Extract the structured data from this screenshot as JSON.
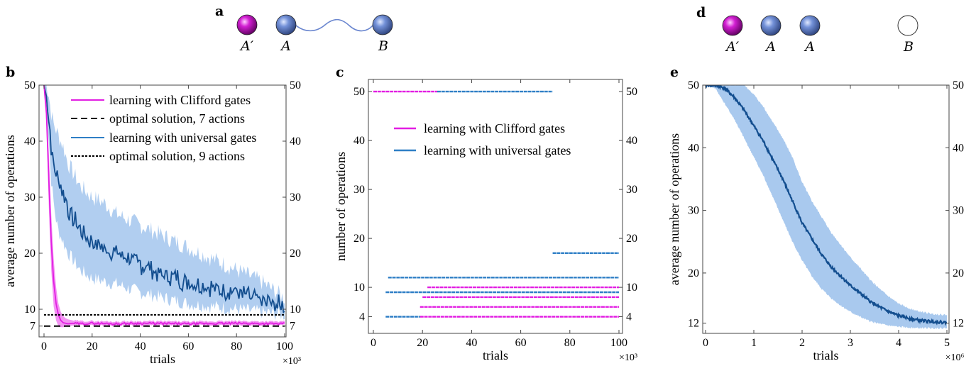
{
  "panel_labels": {
    "a": "a",
    "b": "b",
    "c": "c",
    "d": "d",
    "e": "e"
  },
  "diagram_a": {
    "atoms": [
      {
        "label": "A′",
        "color": "#c020c0"
      },
      {
        "label": "A",
        "color": "#6a86cf"
      },
      {
        "label": "B",
        "color": "#6a86cf"
      }
    ],
    "link": "wavy line between A and B"
  },
  "diagram_d": {
    "atoms": [
      {
        "label": "A′",
        "color": "#c020c0"
      },
      {
        "label": "A",
        "color": "#6a86cf"
      },
      {
        "label": "A",
        "color": "#6a86cf"
      },
      {
        "label": "B",
        "color": "#ffffff"
      }
    ]
  },
  "colors": {
    "clifford": "#e21ee2",
    "clifford_band": "#f287f2",
    "universal_line": "#134e8f",
    "universal_band": "#a9c9ee",
    "universal_dots": "#2f7fc6"
  },
  "chart_data": [
    {
      "id": "b",
      "type": "line",
      "xlabel": "trials",
      "ylabel": "average number of operations",
      "x_multiplier": "×10³",
      "xlim": [
        0,
        100
      ],
      "ylim": [
        5,
        50
      ],
      "xticks": [
        0,
        20,
        40,
        60,
        80,
        100
      ],
      "yticks": [
        7,
        10,
        20,
        30,
        40,
        50
      ],
      "legend": [
        "learning with Clifford gates",
        "optimal solution, 7 actions",
        "learning with universal gates",
        "optimal solution, 9 actions"
      ],
      "series": [
        {
          "name": "learning with Clifford gates",
          "x": [
            0,
            1,
            2,
            3,
            4,
            5,
            6,
            7,
            8,
            9,
            10,
            12,
            15,
            20,
            30,
            40,
            60,
            80,
            100
          ],
          "y": [
            50,
            45,
            33,
            22,
            15,
            11,
            9,
            8,
            7.6,
            7.5,
            7.4,
            7.5,
            7.4,
            7.5,
            7.4,
            7.5,
            7.4,
            7.5,
            7.4
          ],
          "band_lower": [
            50,
            43,
            28,
            17,
            10.5,
            8,
            7,
            6.8,
            6.8,
            6.9,
            7.0,
            7.1,
            7.1,
            7.1,
            7.1,
            7.1,
            7.1,
            7.1,
            7.1
          ],
          "band_upper": [
            50,
            47,
            38,
            27,
            19,
            14,
            11,
            9.5,
            8.8,
            8.4,
            8.2,
            8.0,
            7.9,
            7.9,
            7.8,
            7.9,
            7.8,
            7.9,
            7.8
          ]
        },
        {
          "name": "learning with universal gates",
          "x": [
            0,
            1,
            2,
            3,
            4,
            5,
            6,
            8,
            10,
            15,
            20,
            25,
            30,
            40,
            50,
            60,
            70,
            80,
            90,
            100
          ],
          "y": [
            50,
            48,
            44,
            39,
            36,
            34,
            33,
            31,
            28,
            24,
            22,
            21,
            20,
            18,
            16,
            15,
            14,
            13,
            11.5,
            10.5
          ],
          "band_lower": [
            50,
            46,
            40,
            33,
            29,
            26,
            24,
            22,
            20,
            17,
            15.5,
            15,
            14.5,
            13,
            12,
            11,
            10.5,
            10,
            9.5,
            9
          ],
          "band_upper": [
            50,
            50,
            48,
            45,
            43,
            42,
            41,
            39,
            36,
            32,
            30,
            29,
            27,
            25,
            23,
            21,
            19,
            17,
            15,
            12
          ]
        },
        {
          "name": "optimal solution, 7 actions",
          "x": [
            0,
            100
          ],
          "y": [
            7,
            7
          ]
        },
        {
          "name": "optimal solution, 9 actions",
          "x": [
            0,
            100
          ],
          "y": [
            9,
            9
          ]
        }
      ]
    },
    {
      "id": "c",
      "type": "scatter",
      "xlabel": "trials",
      "ylabel": "number of operations",
      "x_multiplier": "×10³",
      "xlim": [
        0,
        100
      ],
      "ylim": [
        2,
        52
      ],
      "xticks": [
        0,
        20,
        40,
        60,
        80,
        100
      ],
      "yticks": [
        4,
        10,
        20,
        30,
        40,
        50
      ],
      "legend": [
        "learning with Clifford gates",
        "learning with universal gates"
      ],
      "series": [
        {
          "name": "learning with Clifford gates",
          "segments": [
            {
              "y": 50,
              "x_start": 0,
              "x_end": 26
            },
            {
              "y": 10,
              "x_start": 22,
              "x_end": 100
            },
            {
              "y": 8,
              "x_start": 20,
              "x_end": 100
            },
            {
              "y": 6,
              "x_start": 19,
              "x_end": 100
            },
            {
              "y": 4,
              "x_start": 19,
              "x_end": 100
            }
          ]
        },
        {
          "name": "learning with universal gates",
          "segments": [
            {
              "y": 50,
              "x_start": 26,
              "x_end": 73
            },
            {
              "y": 17,
              "x_start": 73,
              "x_end": 100
            },
            {
              "y": 12,
              "x_start": 6,
              "x_end": 100
            },
            {
              "y": 9,
              "x_start": 5,
              "x_end": 100
            },
            {
              "y": 4,
              "x_start": 5,
              "x_end": 19
            }
          ]
        }
      ]
    },
    {
      "id": "e",
      "type": "line",
      "xlabel": "trials",
      "ylabel": "average number of operations",
      "x_multiplier": "×10⁶",
      "xlim": [
        0,
        5
      ],
      "ylim": [
        11,
        50
      ],
      "xticks": [
        0,
        1,
        2,
        3,
        4,
        5
      ],
      "yticks": [
        12,
        20,
        30,
        40,
        50
      ],
      "series": [
        {
          "name": "",
          "x": [
            0,
            0.2,
            0.4,
            0.6,
            0.8,
            1.0,
            1.2,
            1.4,
            1.6,
            1.8,
            2.0,
            2.2,
            2.4,
            2.6,
            2.8,
            3.0,
            3.2,
            3.4,
            3.6,
            3.8,
            4.0,
            4.2,
            4.4,
            4.6,
            4.8,
            5.0
          ],
          "y": [
            50,
            50,
            49.5,
            48,
            46,
            43.5,
            41,
            38,
            35,
            31.5,
            28,
            25.5,
            23,
            21,
            19.5,
            18,
            16.8,
            15.5,
            14.6,
            13.8,
            13.2,
            12.8,
            12.5,
            12.3,
            12.2,
            12.1
          ],
          "band_lower": [
            50,
            49.5,
            47,
            44.5,
            41.5,
            38.5,
            35.5,
            32,
            28.5,
            25,
            22,
            19.5,
            17.5,
            16,
            14.8,
            13.8,
            13,
            12.3,
            11.9,
            11.6,
            11.4,
            11.3,
            11.2,
            11.2,
            11.2,
            11.2
          ],
          "band_upper": [
            50,
            50,
            50,
            50,
            50,
            48.5,
            46.5,
            44,
            41.5,
            38.5,
            34.5,
            31.5,
            29,
            26.5,
            24.5,
            22.5,
            20.8,
            19,
            17.5,
            16.2,
            15.1,
            14.4,
            13.9,
            13.6,
            13.4,
            13.3
          ]
        }
      ]
    }
  ]
}
